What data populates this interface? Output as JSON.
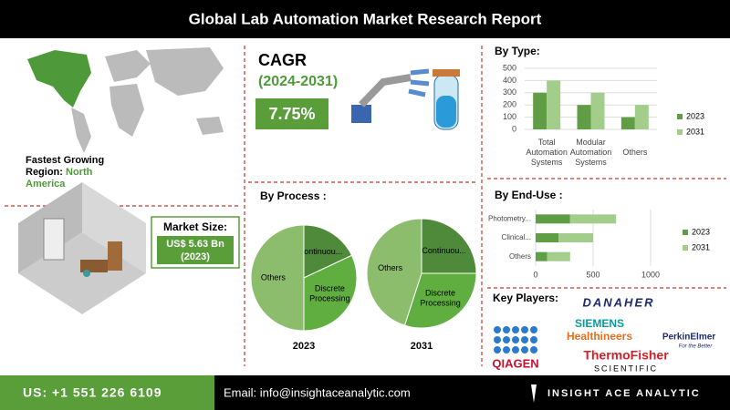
{
  "header": {
    "title": "Global Lab Automation Market Research Report"
  },
  "growth": {
    "label": "Fastest Growing Region:",
    "region": "North America"
  },
  "cagr": {
    "title": "CAGR",
    "period": "(2024-2031)",
    "value": "7.75%"
  },
  "market_size": {
    "label": "Market Size:",
    "value": "US$ 5.63 Bn",
    "year": "(2023)"
  },
  "key_players": {
    "title": "Key Players:",
    "names": [
      "DANAHER",
      "SIEMENS",
      "Healthineers",
      "PerkinElmer",
      "For the Better",
      "QIAGEN",
      "ThermoFisher",
      "SCIENTIFIC"
    ]
  },
  "footer": {
    "phone": "US: +1 551 226 6109",
    "email": "Email: info@insightaceanalytic.com",
    "brand": "INSIGHT ACE ANALYTIC"
  },
  "chart_data": [
    {
      "type": "bar",
      "title": "By Type:",
      "categories": [
        "Total Automation Systems",
        "Modular Automation Systems",
        "Others"
      ],
      "series": [
        {
          "name": "2023",
          "color": "#5f9e45",
          "values": [
            300,
            200,
            100
          ]
        },
        {
          "name": "2031",
          "color": "#a3cd8b",
          "values": [
            400,
            300,
            200
          ]
        }
      ],
      "ylim": [
        0,
        500
      ],
      "yticks": [
        0,
        100,
        200,
        300,
        400,
        500
      ],
      "grid": true,
      "legend": "right"
    },
    {
      "type": "pie",
      "title": "By Process :",
      "categories": [
        "Continuou...",
        "Discrete Processing",
        "Others"
      ],
      "colors": [
        "#4e8a3a",
        "#5fae3f",
        "#8cbd6d"
      ],
      "series": [
        {
          "name": "2023",
          "values": [
            18,
            32,
            50
          ]
        },
        {
          "name": "2031",
          "values": [
            25,
            30,
            45
          ]
        }
      ]
    },
    {
      "type": "hbar",
      "title": "By End-Use :",
      "categories": [
        "Photometry...",
        "Clinical...",
        "Others"
      ],
      "stacked": true,
      "series": [
        {
          "name": "2023",
          "color": "#5f9e45",
          "values": [
            300,
            200,
            100
          ]
        },
        {
          "name": "2031",
          "color": "#a3cd8b",
          "values": [
            400,
            300,
            200
          ]
        }
      ],
      "xlim": [
        0,
        1000
      ],
      "xticks": [
        0,
        500,
        1000
      ],
      "grid": true,
      "legend": "right"
    }
  ]
}
